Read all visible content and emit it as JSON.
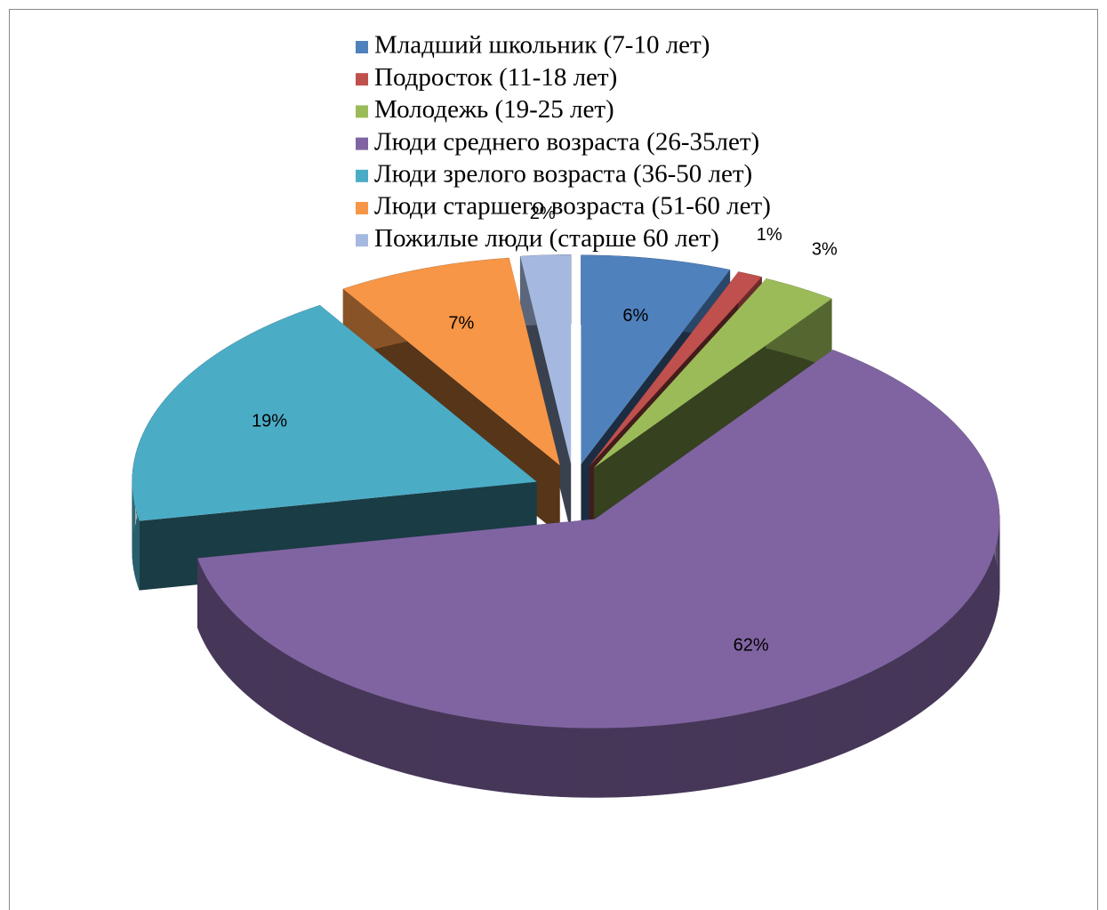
{
  "chart_data": {
    "type": "pie",
    "categories": [
      "Младший школьник (7-10 лет)",
      "Подросток (11-18 лет)",
      "Молодежь (19-25 лет)",
      "Люди среднего возраста (26-35лет)",
      "Люди зрелого возраста (36-50 лет)",
      "Люди старшего возраста (51-60 лет)",
      "Пожилые люди (старше 60 лет)"
    ],
    "values": [
      6,
      1,
      3,
      62,
      19,
      7,
      2
    ],
    "value_labels": [
      "6%",
      "1%",
      "3%",
      "62%",
      "19%",
      "7%",
      "2%"
    ],
    "colors": [
      "#4f81bd",
      "#c0504d",
      "#9bbb59",
      "#8064a2",
      "#4bacc6",
      "#f79646",
      "#a5b9e0"
    ],
    "legend": "top"
  }
}
